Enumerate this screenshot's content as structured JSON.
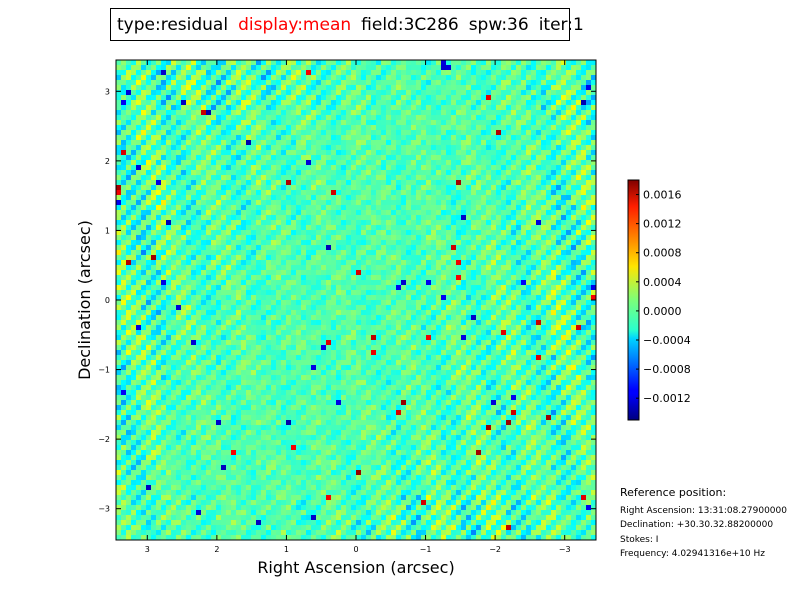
{
  "title_box": {
    "parts": [
      {
        "text": "type:residual",
        "highlight": false
      },
      {
        "text": "display:mean",
        "highlight": true
      },
      {
        "text": "field:3C286",
        "highlight": false
      },
      {
        "text": "spw:36",
        "highlight": false
      },
      {
        "text": "iter:1",
        "highlight": false
      }
    ],
    "highlight_color": "#ff0000"
  },
  "chart_data": {
    "type": "heatmap",
    "title": "",
    "xlabel": "Right Ascension (arcsec)",
    "ylabel": "Declination (arcsec)",
    "xlim": [
      3.45,
      -3.45
    ],
    "ylim": [
      -3.45,
      3.45
    ],
    "x_ticks": [
      {
        "value": 3,
        "label": "3"
      },
      {
        "value": 2,
        "label": "2"
      },
      {
        "value": 1,
        "label": "1"
      },
      {
        "value": 0,
        "label": "0"
      },
      {
        "value": -1,
        "label": "−1"
      },
      {
        "value": -2,
        "label": "−2"
      },
      {
        "value": -3,
        "label": "−3"
      }
    ],
    "y_ticks": [
      {
        "value": 3,
        "label": "3"
      },
      {
        "value": 2,
        "label": "2"
      },
      {
        "value": 1,
        "label": "1"
      },
      {
        "value": 0,
        "label": "0"
      },
      {
        "value": -1,
        "label": "−1"
      },
      {
        "value": -2,
        "label": "−2"
      },
      {
        "value": -3,
        "label": "−3"
      }
    ],
    "colormap": "jet",
    "colorbar": {
      "vmin": -0.0015,
      "vmax": 0.0018,
      "ticks": [
        {
          "value": 0.0016,
          "label": "0.0016"
        },
        {
          "value": 0.0012,
          "label": "0.0012"
        },
        {
          "value": 0.0008,
          "label": "0.0008"
        },
        {
          "value": 0.0004,
          "label": "0.0004"
        },
        {
          "value": 0.0,
          "label": "0.0000"
        },
        {
          "value": -0.0004,
          "label": "−0.0004"
        },
        {
          "value": -0.0008,
          "label": "−0.0008"
        },
        {
          "value": -0.0012,
          "label": "−0.0012"
        }
      ]
    },
    "pattern": "diagonal residual stripes, mostly near 0.0000 with scattered peaks"
  },
  "reference": {
    "heading": "Reference position:",
    "lines": [
      "Right Ascension: 13:31:08.27900000",
      "Declination: +30.30.32.88200000",
      "Stokes: I",
      "Frequency: 4.02941316e+10 Hz"
    ]
  }
}
